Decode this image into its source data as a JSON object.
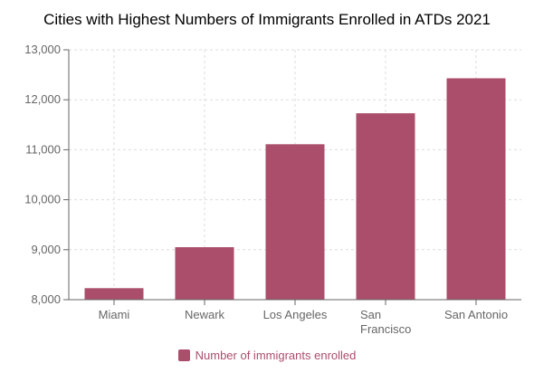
{
  "chart_data": {
    "type": "bar",
    "title": "Cities with Highest Numbers of Immigrants Enrolled in ATDs 2021",
    "categories": [
      "Miami",
      "Newark",
      "Los Angeles",
      "San Francisco",
      "San Antonio"
    ],
    "category_lines": [
      [
        "Miami"
      ],
      [
        "Newark"
      ],
      [
        "Los Angeles"
      ],
      [
        "San",
        "Francisco"
      ],
      [
        "San Antonio"
      ]
    ],
    "series": [
      {
        "name": "Number of immigrants enrolled",
        "values": [
          8230,
          9050,
          11110,
          11730,
          12430
        ]
      }
    ],
    "y_ticks": [
      "8,000",
      "9,000",
      "10,000",
      "11,000",
      "12,000",
      "13,000"
    ],
    "ylim": [
      8000,
      13000
    ],
    "grid": true,
    "legend": "bottom",
    "colors": {
      "bar": "#ab4e6b",
      "legend_text": "#ab4e6b",
      "grid": "#dddddd",
      "axis": "#666666"
    }
  }
}
